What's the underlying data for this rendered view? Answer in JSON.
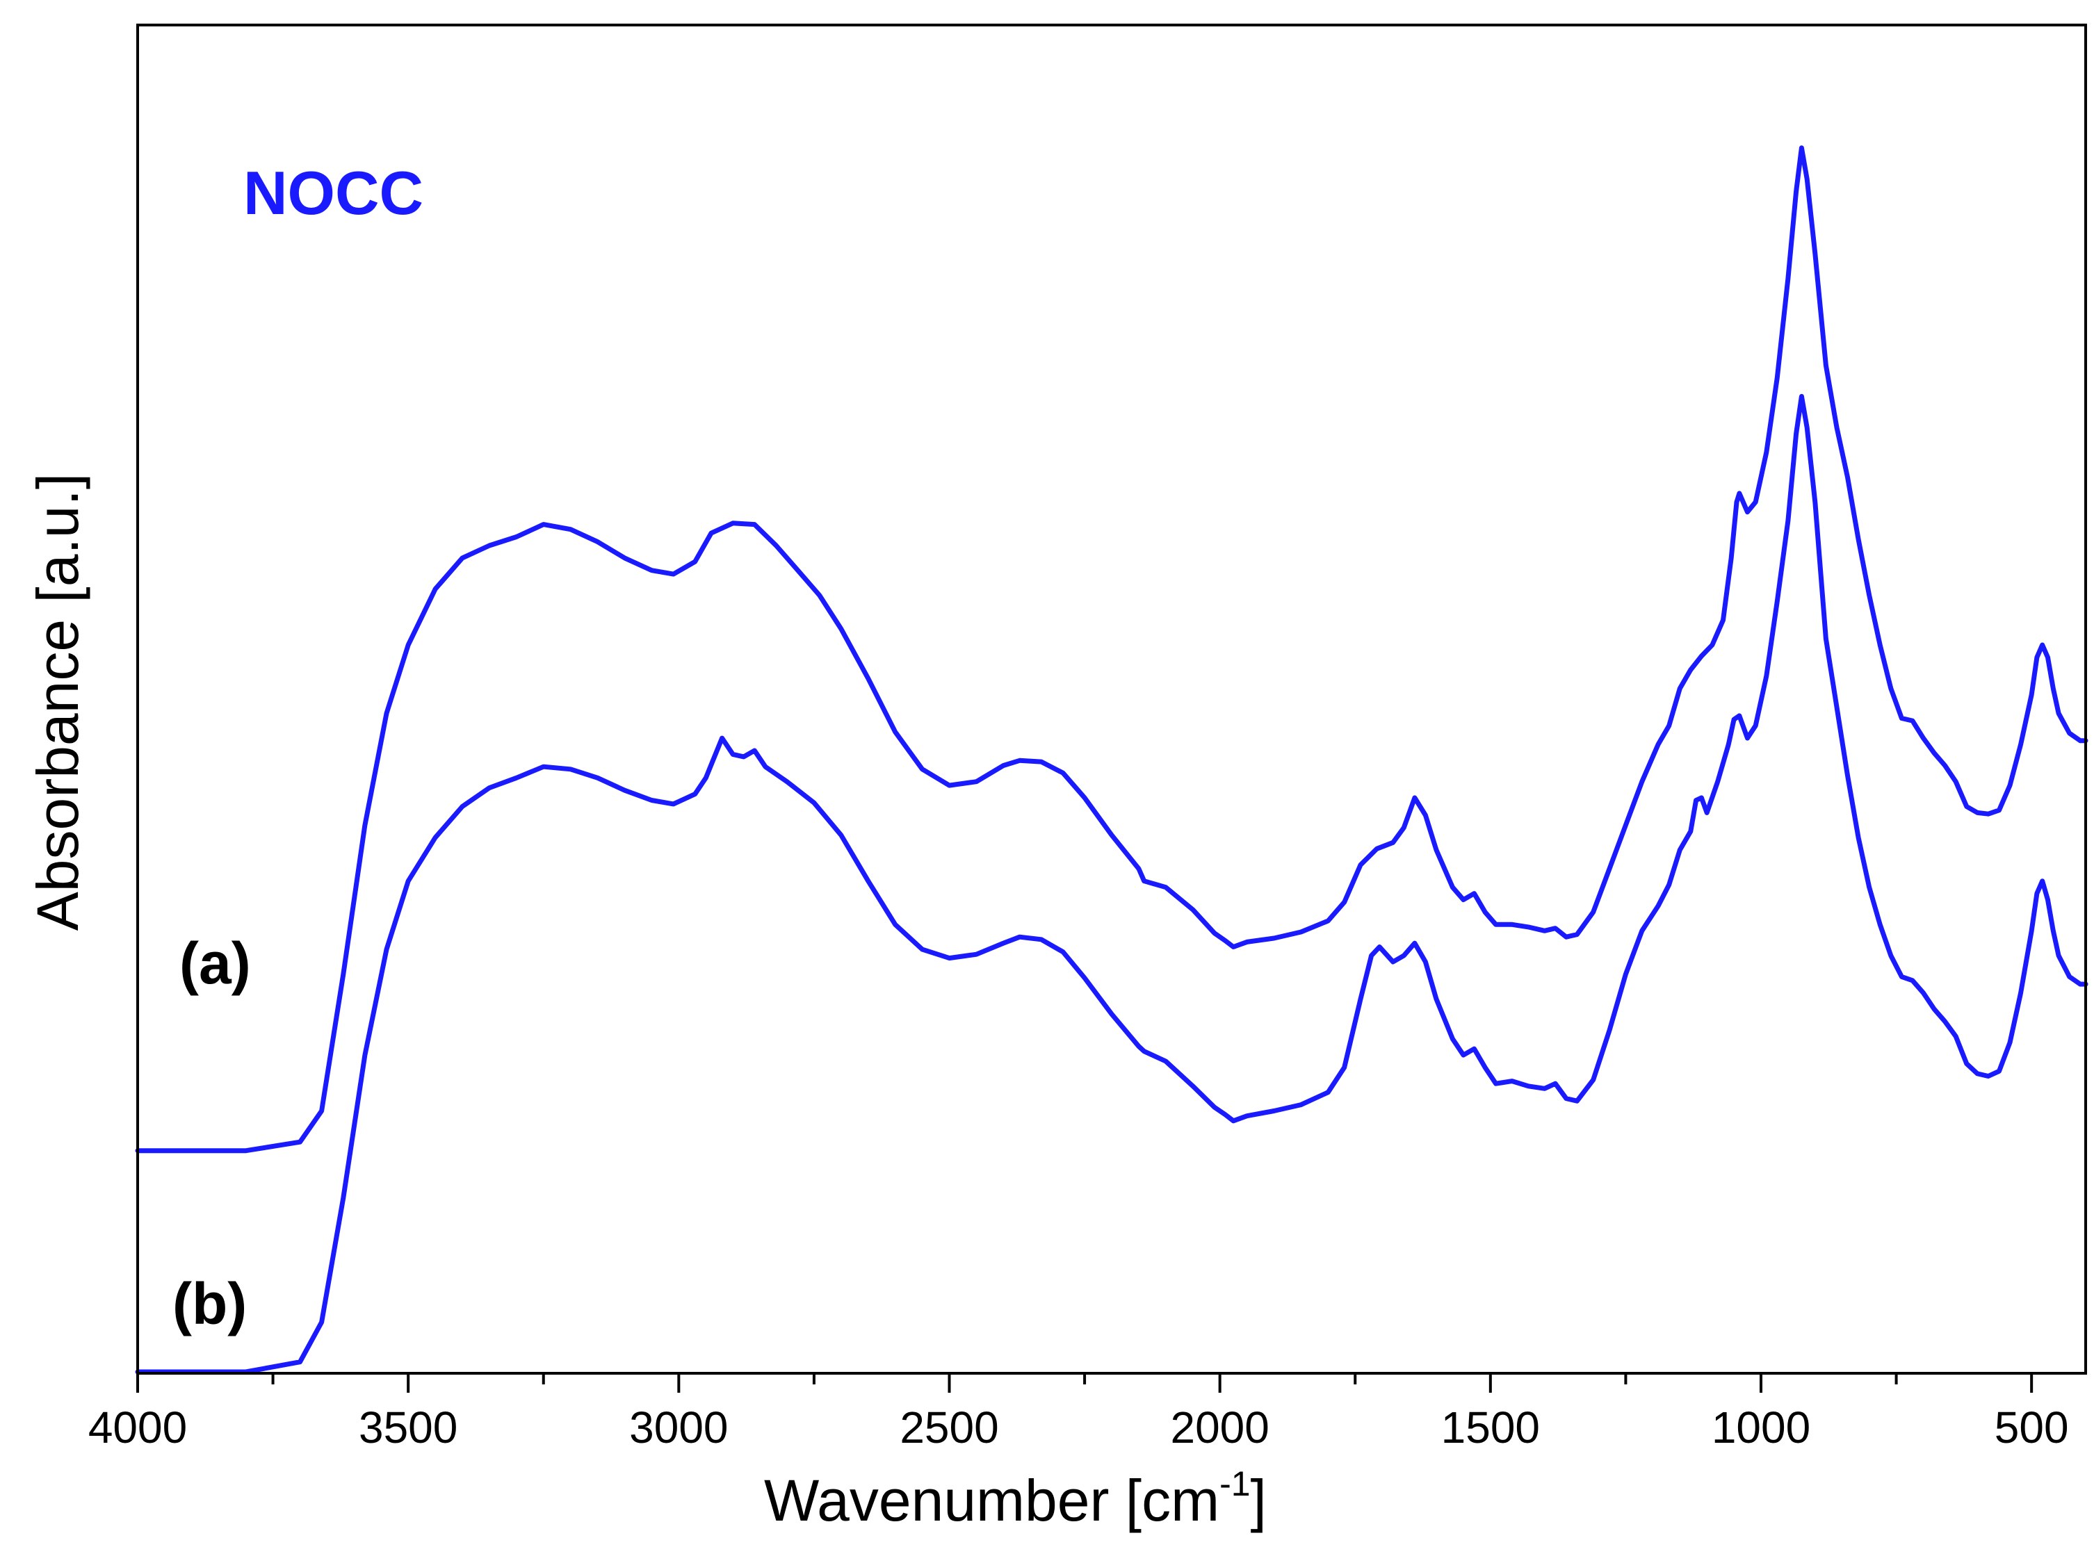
{
  "chart_data": {
    "type": "line",
    "title": "",
    "annotation": "NOCC",
    "xlabel_main": "Wavenumber [cm",
    "xlabel_sup": "-1",
    "xlabel_close": "]",
    "ylabel": "Absorbance [a.u.]",
    "xlim": [
      4000,
      400
    ],
    "ylim": [
      0,
      1
    ],
    "x_reversed": true,
    "x_ticks": [
      4000,
      3500,
      3000,
      2500,
      2000,
      1500,
      1000,
      500
    ],
    "x_tick_labels": [
      "4000",
      "3500",
      "3000",
      "2500",
      "2000",
      "1500",
      "1000",
      "500"
    ],
    "x_minor_ticks": [
      3750,
      3250,
      2750,
      2250,
      1750,
      1250,
      750
    ],
    "y_tick_labels_shown": false,
    "grid": false,
    "line_color": "#1a1aff",
    "annotation_color": "#1a1aff",
    "series": [
      {
        "name": "(a)",
        "label": "(a)",
        "points": [
          [
            4000,
            0.178
          ],
          [
            3800,
            0.178
          ],
          [
            3700,
            0.185
          ],
          [
            3660,
            0.21
          ],
          [
            3620,
            0.32
          ],
          [
            3580,
            0.44
          ],
          [
            3540,
            0.53
          ],
          [
            3500,
            0.585
          ],
          [
            3450,
            0.63
          ],
          [
            3400,
            0.655
          ],
          [
            3350,
            0.665
          ],
          [
            3300,
            0.672
          ],
          [
            3250,
            0.682
          ],
          [
            3200,
            0.678
          ],
          [
            3150,
            0.668
          ],
          [
            3100,
            0.655
          ],
          [
            3050,
            0.645
          ],
          [
            3010,
            0.642
          ],
          [
            2970,
            0.652
          ],
          [
            2940,
            0.675
          ],
          [
            2900,
            0.683
          ],
          [
            2860,
            0.682
          ],
          [
            2820,
            0.665
          ],
          [
            2780,
            0.645
          ],
          [
            2740,
            0.625
          ],
          [
            2700,
            0.598
          ],
          [
            2650,
            0.558
          ],
          [
            2600,
            0.515
          ],
          [
            2550,
            0.485
          ],
          [
            2500,
            0.472
          ],
          [
            2450,
            0.475
          ],
          [
            2400,
            0.488
          ],
          [
            2370,
            0.492
          ],
          [
            2330,
            0.491
          ],
          [
            2290,
            0.482
          ],
          [
            2250,
            0.462
          ],
          [
            2200,
            0.432
          ],
          [
            2150,
            0.405
          ],
          [
            2140,
            0.395
          ],
          [
            2100,
            0.39
          ],
          [
            2050,
            0.372
          ],
          [
            2010,
            0.353
          ],
          [
            1990,
            0.347
          ],
          [
            1975,
            0.342
          ],
          [
            1950,
            0.346
          ],
          [
            1900,
            0.349
          ],
          [
            1850,
            0.354
          ],
          [
            1800,
            0.363
          ],
          [
            1770,
            0.378
          ],
          [
            1740,
            0.408
          ],
          [
            1710,
            0.421
          ],
          [
            1680,
            0.426
          ],
          [
            1660,
            0.438
          ],
          [
            1640,
            0.462
          ],
          [
            1620,
            0.448
          ],
          [
            1600,
            0.42
          ],
          [
            1570,
            0.39
          ],
          [
            1550,
            0.38
          ],
          [
            1530,
            0.385
          ],
          [
            1510,
            0.37
          ],
          [
            1490,
            0.36
          ],
          [
            1460,
            0.36
          ],
          [
            1430,
            0.358
          ],
          [
            1400,
            0.355
          ],
          [
            1380,
            0.357
          ],
          [
            1360,
            0.35
          ],
          [
            1340,
            0.352
          ],
          [
            1310,
            0.37
          ],
          [
            1280,
            0.405
          ],
          [
            1250,
            0.44
          ],
          [
            1220,
            0.475
          ],
          [
            1190,
            0.505
          ],
          [
            1170,
            0.52
          ],
          [
            1150,
            0.55
          ],
          [
            1130,
            0.565
          ],
          [
            1110,
            0.576
          ],
          [
            1090,
            0.585
          ],
          [
            1070,
            0.605
          ],
          [
            1055,
            0.655
          ],
          [
            1045,
            0.7
          ],
          [
            1040,
            0.707
          ],
          [
            1025,
            0.692
          ],
          [
            1010,
            0.7
          ],
          [
            990,
            0.74
          ],
          [
            970,
            0.8
          ],
          [
            950,
            0.88
          ],
          [
            935,
            0.95
          ],
          [
            925,
            0.985
          ],
          [
            915,
            0.96
          ],
          [
            900,
            0.9
          ],
          [
            880,
            0.81
          ],
          [
            860,
            0.76
          ],
          [
            840,
            0.72
          ],
          [
            820,
            0.67
          ],
          [
            800,
            0.625
          ],
          [
            780,
            0.585
          ],
          [
            760,
            0.55
          ],
          [
            740,
            0.526
          ],
          [
            720,
            0.524
          ],
          [
            700,
            0.51
          ],
          [
            680,
            0.498
          ],
          [
            660,
            0.488
          ],
          [
            640,
            0.475
          ],
          [
            620,
            0.455
          ],
          [
            600,
            0.45
          ],
          [
            580,
            0.449
          ],
          [
            560,
            0.452
          ],
          [
            540,
            0.472
          ],
          [
            520,
            0.505
          ],
          [
            500,
            0.545
          ],
          [
            490,
            0.575
          ],
          [
            480,
            0.585
          ],
          [
            470,
            0.575
          ],
          [
            460,
            0.55
          ],
          [
            450,
            0.53
          ],
          [
            430,
            0.514
          ],
          [
            410,
            0.508
          ],
          [
            400,
            0.508
          ]
        ]
      },
      {
        "name": "(b)",
        "label": "(b)",
        "points": [
          [
            4000,
            0.0
          ],
          [
            3800,
            0.0
          ],
          [
            3700,
            0.008
          ],
          [
            3660,
            0.04
          ],
          [
            3620,
            0.14
          ],
          [
            3580,
            0.255
          ],
          [
            3540,
            0.34
          ],
          [
            3500,
            0.395
          ],
          [
            3450,
            0.43
          ],
          [
            3400,
            0.455
          ],
          [
            3350,
            0.47
          ],
          [
            3300,
            0.478
          ],
          [
            3250,
            0.487
          ],
          [
            3200,
            0.485
          ],
          [
            3150,
            0.478
          ],
          [
            3100,
            0.468
          ],
          [
            3050,
            0.46
          ],
          [
            3010,
            0.457
          ],
          [
            2970,
            0.465
          ],
          [
            2950,
            0.478
          ],
          [
            2920,
            0.51
          ],
          [
            2900,
            0.497
          ],
          [
            2880,
            0.495
          ],
          [
            2860,
            0.5
          ],
          [
            2840,
            0.487
          ],
          [
            2800,
            0.475
          ],
          [
            2750,
            0.458
          ],
          [
            2700,
            0.432
          ],
          [
            2650,
            0.395
          ],
          [
            2600,
            0.36
          ],
          [
            2550,
            0.34
          ],
          [
            2500,
            0.333
          ],
          [
            2450,
            0.336
          ],
          [
            2400,
            0.345
          ],
          [
            2370,
            0.35
          ],
          [
            2330,
            0.348
          ],
          [
            2290,
            0.338
          ],
          [
            2250,
            0.317
          ],
          [
            2200,
            0.288
          ],
          [
            2150,
            0.262
          ],
          [
            2140,
            0.258
          ],
          [
            2100,
            0.25
          ],
          [
            2050,
            0.23
          ],
          [
            2010,
            0.213
          ],
          [
            1990,
            0.207
          ],
          [
            1975,
            0.202
          ],
          [
            1950,
            0.206
          ],
          [
            1900,
            0.21
          ],
          [
            1850,
            0.215
          ],
          [
            1800,
            0.225
          ],
          [
            1770,
            0.245
          ],
          [
            1740,
            0.3
          ],
          [
            1720,
            0.335
          ],
          [
            1705,
            0.342
          ],
          [
            1680,
            0.33
          ],
          [
            1660,
            0.335
          ],
          [
            1640,
            0.345
          ],
          [
            1620,
            0.33
          ],
          [
            1600,
            0.3
          ],
          [
            1570,
            0.268
          ],
          [
            1550,
            0.255
          ],
          [
            1530,
            0.26
          ],
          [
            1510,
            0.245
          ],
          [
            1490,
            0.232
          ],
          [
            1460,
            0.234
          ],
          [
            1430,
            0.23
          ],
          [
            1400,
            0.228
          ],
          [
            1380,
            0.232
          ],
          [
            1360,
            0.22
          ],
          [
            1340,
            0.218
          ],
          [
            1310,
            0.235
          ],
          [
            1280,
            0.275
          ],
          [
            1250,
            0.32
          ],
          [
            1220,
            0.355
          ],
          [
            1190,
            0.375
          ],
          [
            1170,
            0.392
          ],
          [
            1150,
            0.42
          ],
          [
            1130,
            0.435
          ],
          [
            1120,
            0.46
          ],
          [
            1110,
            0.462
          ],
          [
            1100,
            0.45
          ],
          [
            1080,
            0.475
          ],
          [
            1060,
            0.505
          ],
          [
            1050,
            0.525
          ],
          [
            1040,
            0.528
          ],
          [
            1025,
            0.51
          ],
          [
            1010,
            0.52
          ],
          [
            990,
            0.56
          ],
          [
            970,
            0.62
          ],
          [
            950,
            0.685
          ],
          [
            935,
            0.755
          ],
          [
            925,
            0.785
          ],
          [
            915,
            0.76
          ],
          [
            900,
            0.7
          ],
          [
            880,
            0.59
          ],
          [
            860,
            0.535
          ],
          [
            840,
            0.48
          ],
          [
            820,
            0.43
          ],
          [
            800,
            0.39
          ],
          [
            780,
            0.36
          ],
          [
            760,
            0.335
          ],
          [
            740,
            0.318
          ],
          [
            720,
            0.315
          ],
          [
            700,
            0.305
          ],
          [
            680,
            0.292
          ],
          [
            660,
            0.282
          ],
          [
            640,
            0.27
          ],
          [
            620,
            0.248
          ],
          [
            600,
            0.24
          ],
          [
            580,
            0.238
          ],
          [
            560,
            0.242
          ],
          [
            540,
            0.265
          ],
          [
            520,
            0.305
          ],
          [
            500,
            0.355
          ],
          [
            490,
            0.385
          ],
          [
            480,
            0.395
          ],
          [
            470,
            0.38
          ],
          [
            460,
            0.355
          ],
          [
            450,
            0.335
          ],
          [
            430,
            0.318
          ],
          [
            410,
            0.312
          ],
          [
            400,
            0.312
          ]
        ]
      }
    ]
  }
}
